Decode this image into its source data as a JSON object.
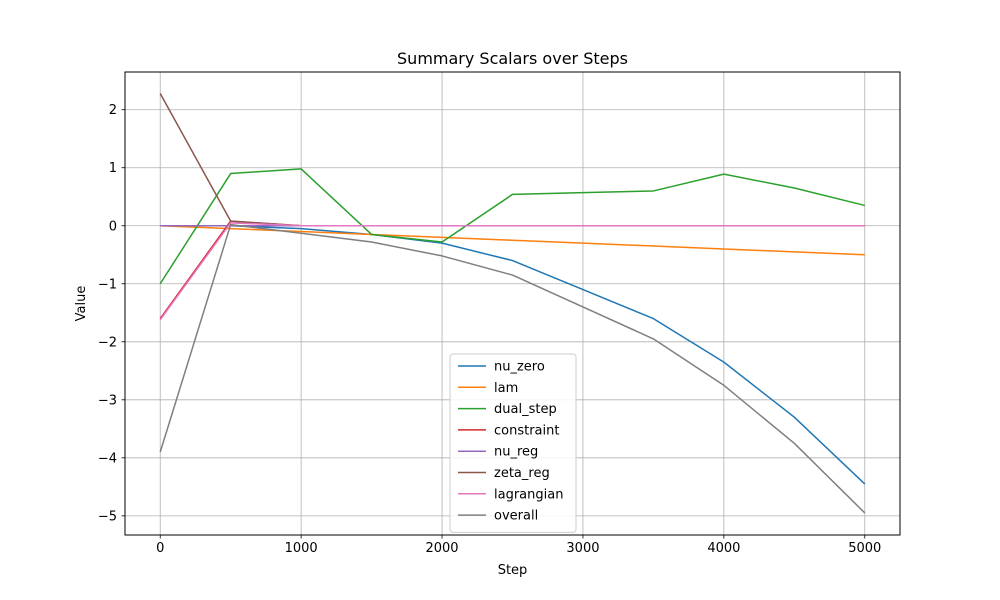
{
  "chart_data": {
    "type": "line",
    "title": "Summary Scalars over Steps",
    "xlabel": "Step",
    "ylabel": "Value",
    "xlim": [
      -250,
      5250
    ],
    "ylim": [
      -5.33,
      2.65
    ],
    "xticks": [
      0,
      1000,
      2000,
      3000,
      4000,
      5000
    ],
    "xtick_labels": [
      "0",
      "1000",
      "2000",
      "3000",
      "4000",
      "5000"
    ],
    "yticks": [
      -5,
      -4,
      -3,
      -2,
      -1,
      0,
      1,
      2
    ],
    "ytick_labels": [
      "−5",
      "−4",
      "−3",
      "−2",
      "−1",
      "0",
      "1",
      "2"
    ],
    "grid": true,
    "legend_position": "lower center",
    "x": [
      0,
      500,
      1000,
      1500,
      2000,
      2500,
      3000,
      3500,
      4000,
      4500,
      5000
    ],
    "series": [
      {
        "name": "nu_zero",
        "color": "#1f77b4",
        "values": [
          0.0,
          0.0,
          -0.05,
          -0.15,
          -0.3,
          -0.6,
          -1.1,
          -1.6,
          -2.35,
          -3.3,
          -4.45
        ]
      },
      {
        "name": "lam",
        "color": "#ff7f0e",
        "values": [
          0.0,
          -0.05,
          -0.1,
          -0.15,
          -0.2,
          -0.25,
          -0.3,
          -0.35,
          -0.4,
          -0.45,
          -0.5
        ]
      },
      {
        "name": "dual_step",
        "color": "#2ca02c",
        "values": [
          -1.0,
          0.9,
          0.98,
          -0.15,
          -0.28,
          0.54,
          0.57,
          0.6,
          0.89,
          0.65,
          0.35
        ]
      },
      {
        "name": "constraint",
        "color": "#d62728",
        "values": [
          -1.6,
          0.08,
          0.0,
          0.0,
          0.0,
          0.0,
          0.0,
          0.0,
          0.0,
          0.0,
          0.0
        ]
      },
      {
        "name": "nu_reg",
        "color": "#9467bd",
        "values": [
          0.0,
          0.0,
          0.0,
          0.0,
          0.0,
          0.0,
          0.0,
          0.0,
          0.0,
          0.0,
          0.0
        ]
      },
      {
        "name": "zeta_reg",
        "color": "#8c564b",
        "values": [
          2.28,
          0.08,
          0.0,
          0.0,
          0.0,
          0.0,
          0.0,
          0.0,
          0.0,
          0.0,
          0.0
        ]
      },
      {
        "name": "lagrangian",
        "color": "#e377c2",
        "values": [
          -1.62,
          0.05,
          0.0,
          0.0,
          0.0,
          0.0,
          0.0,
          0.0,
          0.0,
          0.0,
          0.0
        ]
      },
      {
        "name": "overall",
        "color": "#7f7f7f",
        "values": [
          -3.9,
          0.02,
          -0.13,
          -0.28,
          -0.52,
          -0.85,
          -1.4,
          -1.95,
          -2.75,
          -3.75,
          -4.95
        ]
      }
    ]
  }
}
